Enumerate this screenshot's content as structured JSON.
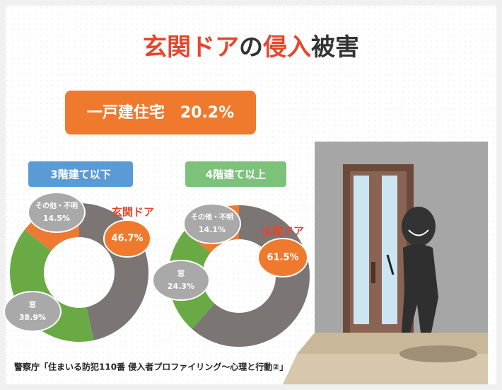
{
  "title_parts": [
    "玄関ドア",
    "の",
    "侵入",
    "被害"
  ],
  "highlight": "一戸建住宅　20.2%",
  "source": "警察庁「住まいる防犯110番 侵入者プロファイリング～心理と行動②」",
  "chart_data": [
    {
      "type": "donut",
      "title": "3階建て以下",
      "title_color": "#5b9bd5",
      "categories": [
        "玄関ドア",
        "窓",
        "その他・不明"
      ],
      "values": [
        46.7,
        38.9,
        14.5
      ],
      "value_labels": [
        "46.7%",
        "38.9%",
        "14.5%"
      ],
      "colors": [
        "#7b7573",
        "#6aaa45",
        "#ec7a33"
      ]
    },
    {
      "type": "donut",
      "title": "4階建て以上",
      "title_color": "#7cc27b",
      "categories": [
        "玄関ドア",
        "窓",
        "その他・不明"
      ],
      "values": [
        61.5,
        24.3,
        14.1
      ],
      "value_labels": [
        "61.5%",
        "24.3%",
        "14.1%"
      ],
      "colors": [
        "#7b7573",
        "#6aaa45",
        "#ec7a33"
      ]
    }
  ]
}
